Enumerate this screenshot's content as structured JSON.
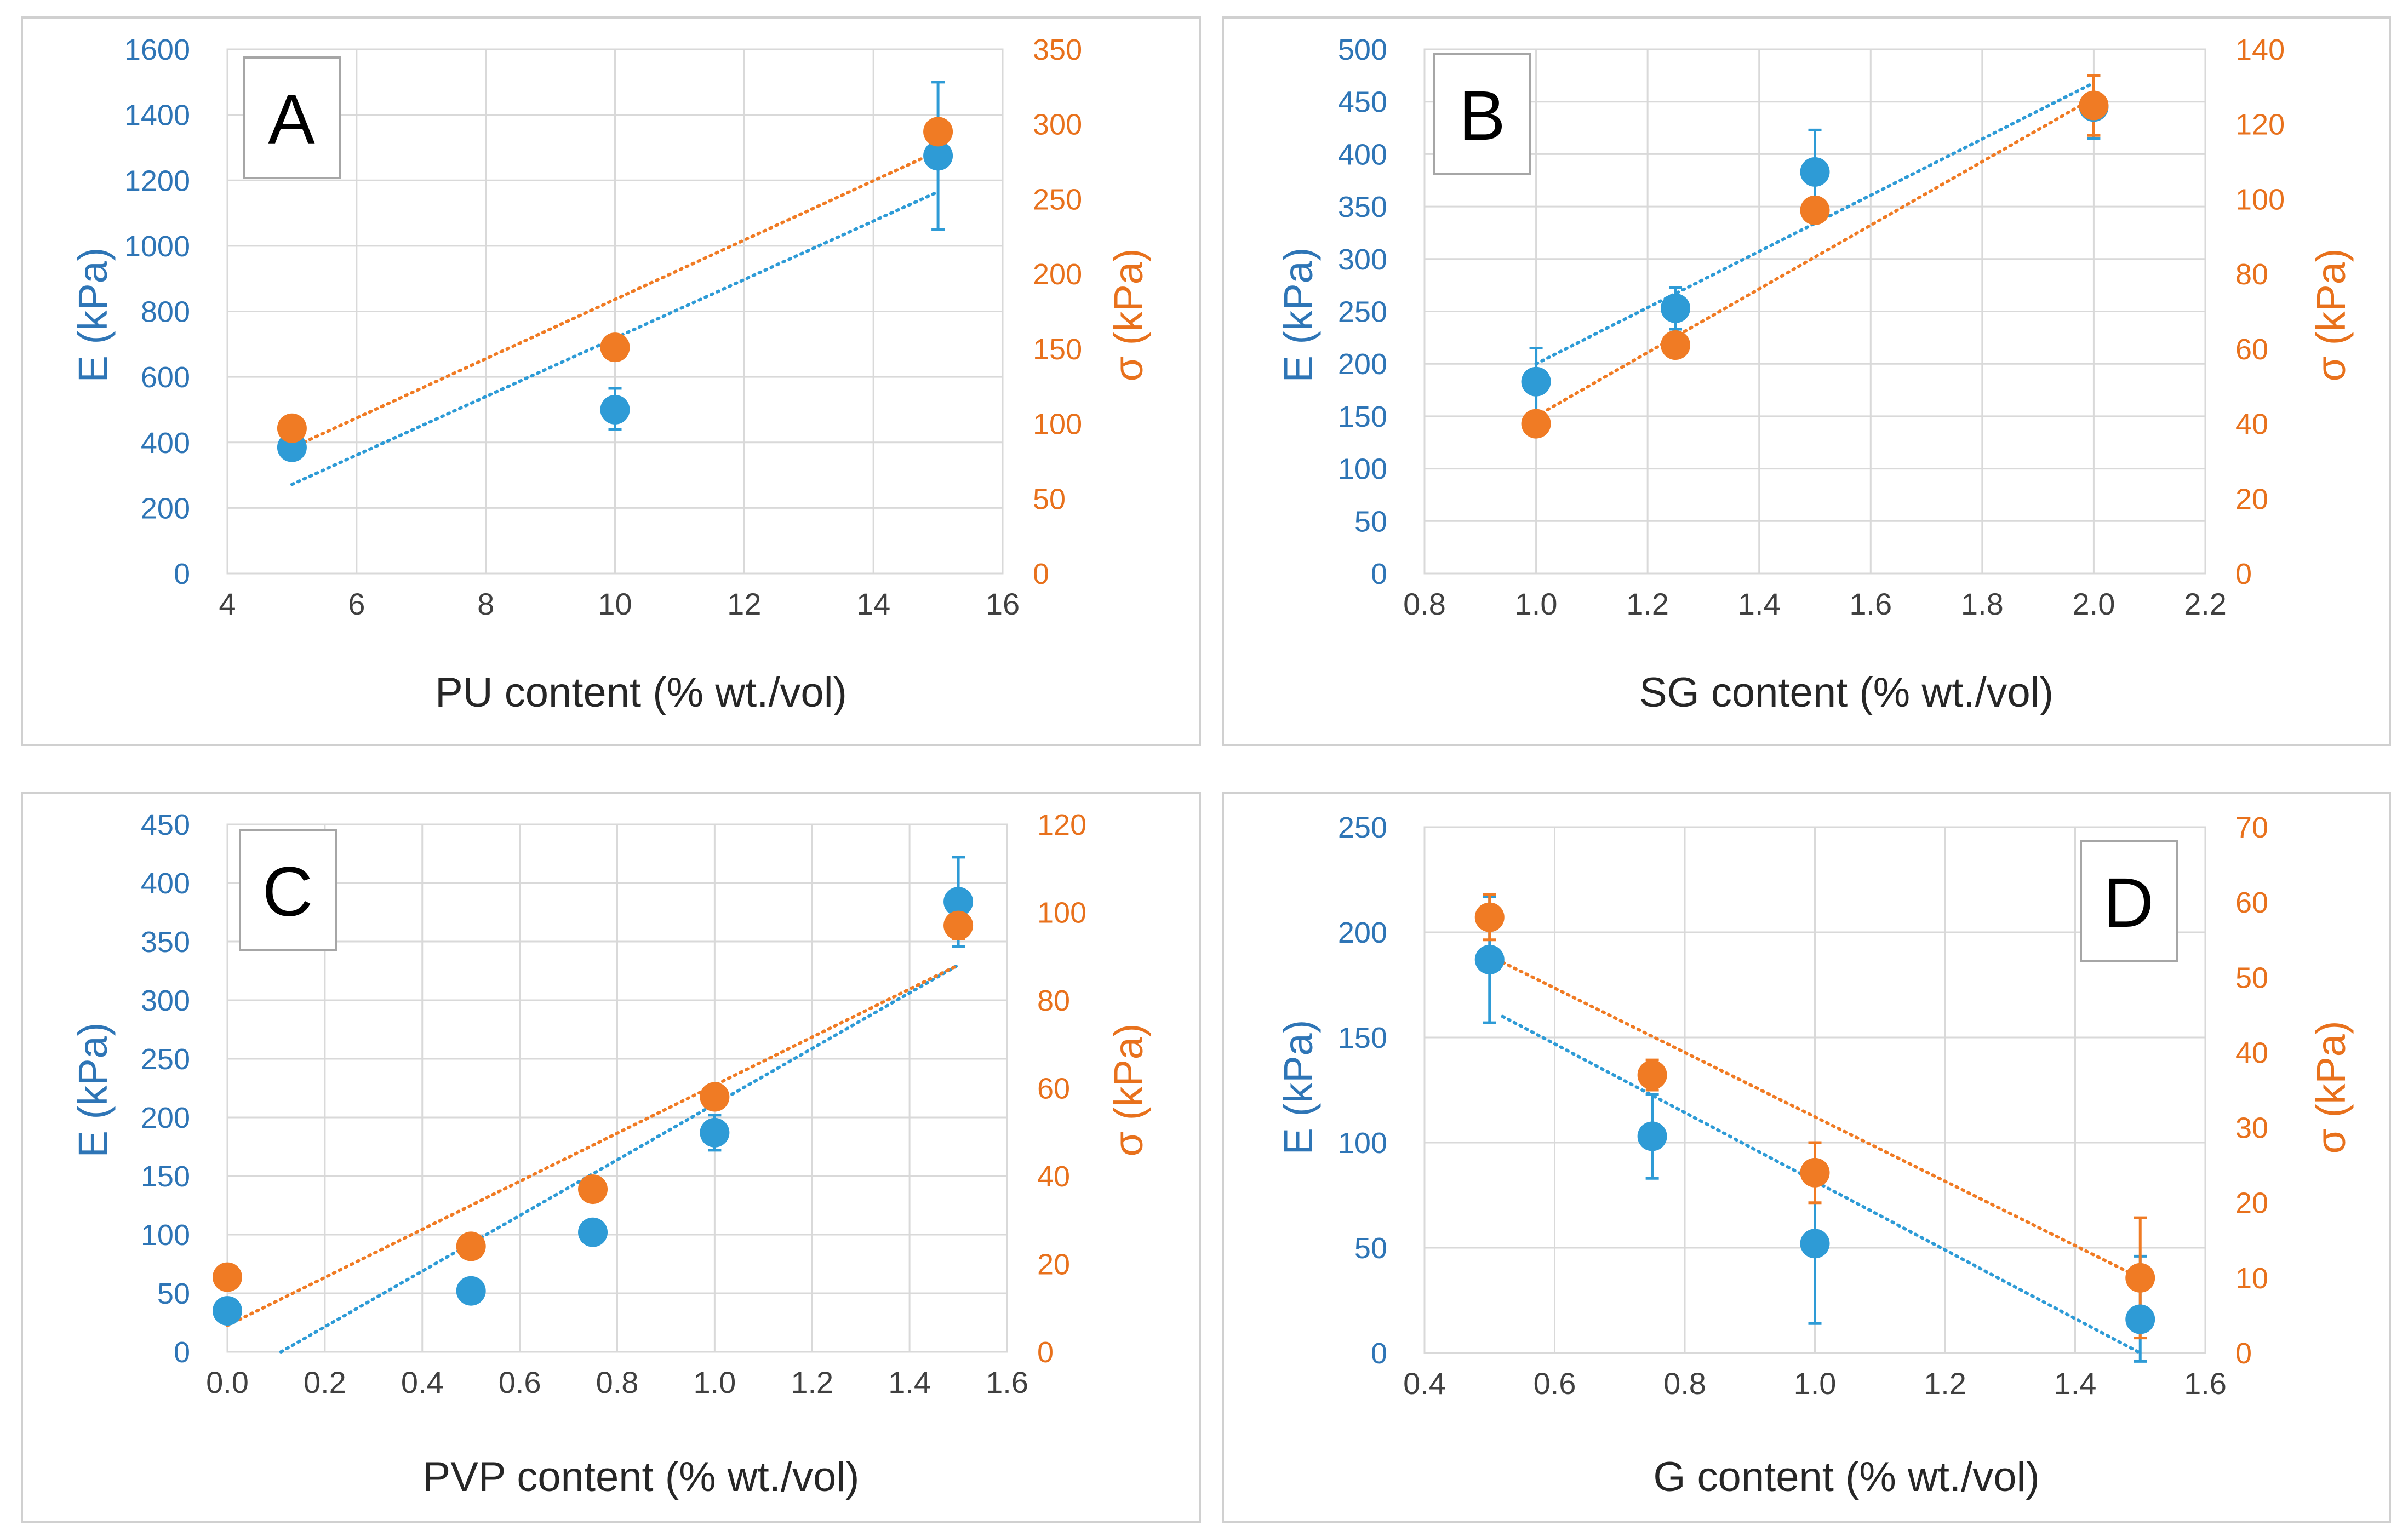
{
  "colors": {
    "E": "#2E9BD6",
    "sigma": "#F07B24",
    "E_text": "#2E75B6",
    "sigma_text": "#E8711C"
  },
  "chart_data": [
    {
      "type": "scatter",
      "panel": "A",
      "xlabel": "PU content (% wt./vol)",
      "ylabel_left": "E (kPa)",
      "ylabel_right": "σ (kPa)",
      "x_ticks": [
        "4",
        "6",
        "8",
        "10",
        "12",
        "14",
        "16"
      ],
      "y_left_ticks": [
        "0",
        "200",
        "400",
        "600",
        "800",
        "1000",
        "1200",
        "1400",
        "1600"
      ],
      "y_right_ticks": [
        "0",
        "50",
        "100",
        "150",
        "200",
        "250",
        "300",
        "350"
      ],
      "xlim": [
        4,
        16
      ],
      "ylim_left": [
        0,
        1600
      ],
      "ylim_right": [
        0,
        350
      ],
      "legend_position": "top-left",
      "series": [
        {
          "name": "E",
          "axis": "left",
          "x": [
            5,
            10,
            15
          ],
          "y": [
            385,
            500,
            1275
          ],
          "err_low": [
            0,
            60,
            225
          ],
          "err_high": [
            0,
            65,
            225
          ],
          "trend": {
            "x": [
              5,
              15
            ],
            "y": [
              272,
              1165
            ]
          }
        },
        {
          "name": "σ",
          "axis": "right",
          "x": [
            5,
            10,
            15
          ],
          "y": [
            97,
            151,
            295
          ],
          "err_low": [
            0,
            0,
            0
          ],
          "err_high": [
            0,
            0,
            0
          ],
          "trend": {
            "x": [
              5,
              15
            ],
            "y": [
              84,
              282
            ]
          }
        }
      ]
    },
    {
      "type": "scatter",
      "panel": "B",
      "xlabel": "SG content (% wt./vol)",
      "ylabel_left": "E (kPa)",
      "ylabel_right": "σ (kPa)",
      "x_ticks": [
        "0.8",
        "1.0",
        "1.2",
        "1.4",
        "1.6",
        "1.8",
        "2.0",
        "2.2"
      ],
      "y_left_ticks": [
        "0",
        "50",
        "100",
        "150",
        "200",
        "250",
        "300",
        "350",
        "400",
        "450",
        "500"
      ],
      "y_right_ticks": [
        "0",
        "20",
        "40",
        "60",
        "80",
        "100",
        "120",
        "140"
      ],
      "xlim": [
        0.8,
        2.2
      ],
      "ylim_left": [
        0,
        500
      ],
      "ylim_right": [
        0,
        140
      ],
      "legend_position": "top-left",
      "series": [
        {
          "name": "E",
          "axis": "left",
          "x": [
            1.0,
            1.25,
            1.5,
            2.0
          ],
          "y": [
            183,
            253,
            383,
            445
          ],
          "err_low": [
            32,
            20,
            40,
            30
          ],
          "err_high": [
            32,
            20,
            40,
            30
          ],
          "trend": {
            "x": [
              1.0,
              2.0
            ],
            "y": [
              200,
              468
            ]
          }
        },
        {
          "name": "σ",
          "axis": "right",
          "x": [
            1.0,
            1.25,
            1.5,
            2.0
          ],
          "y": [
            40,
            61,
            97,
            125
          ],
          "err_low": [
            0,
            0,
            3,
            8
          ],
          "err_high": [
            0,
            0,
            3,
            8
          ],
          "trend": {
            "x": [
              1.0,
              2.0
            ],
            "y": [
              42,
              127
            ]
          }
        }
      ]
    },
    {
      "type": "scatter",
      "panel": "C",
      "xlabel": "PVP content (% wt./vol)",
      "ylabel_left": "E (kPa)",
      "ylabel_right": "σ (kPa)",
      "x_ticks": [
        "0.0",
        "0.2",
        "0.4",
        "0.6",
        "0.8",
        "1.0",
        "1.2",
        "1.4",
        "1.6"
      ],
      "y_left_ticks": [
        "0",
        "50",
        "100",
        "150",
        "200",
        "250",
        "300",
        "350",
        "400",
        "450"
      ],
      "y_right_ticks": [
        "0",
        "20",
        "40",
        "60",
        "80",
        "100",
        "120"
      ],
      "xlim": [
        0,
        1.6
      ],
      "ylim_left": [
        0,
        450
      ],
      "ylim_right": [
        0,
        120
      ],
      "legend_position": "top-left",
      "series": [
        {
          "name": "E",
          "axis": "left",
          "x": [
            0.0,
            0.5,
            0.75,
            1.0,
            1.5
          ],
          "y": [
            35,
            52,
            102,
            187,
            384
          ],
          "err_low": [
            0,
            0,
            10,
            15,
            38
          ],
          "err_high": [
            0,
            0,
            10,
            15,
            38
          ],
          "trend": {
            "x": [
              0.11,
              1.5
            ],
            "y": [
              0,
              330
            ]
          }
        },
        {
          "name": "σ",
          "axis": "right",
          "x": [
            0.0,
            0.5,
            0.75,
            1.0,
            1.5
          ],
          "y": [
            17,
            24,
            37,
            58,
            97
          ],
          "err_low": [
            0,
            0,
            0,
            0,
            3
          ],
          "err_high": [
            0,
            0,
            0,
            0,
            3
          ],
          "trend": {
            "x": [
              0.0,
              1.5
            ],
            "y": [
              6,
              88
            ]
          }
        }
      ]
    },
    {
      "type": "scatter",
      "panel": "D",
      "xlabel": "G content (% wt./vol)",
      "ylabel_left": "E (kPa)",
      "ylabel_right": "σ (kPa)",
      "x_ticks": [
        "0.4",
        "0.6",
        "0.8",
        "1.0",
        "1.2",
        "1.4",
        "1.6"
      ],
      "y_left_ticks": [
        "0",
        "50",
        "100",
        "150",
        "200",
        "250"
      ],
      "y_right_ticks": [
        "0",
        "10",
        "20",
        "30",
        "40",
        "50",
        "60",
        "70"
      ],
      "xlim": [
        0.4,
        1.6
      ],
      "ylim_left": [
        0,
        250
      ],
      "ylim_right": [
        0,
        70
      ],
      "legend_position": "top-right",
      "series": [
        {
          "name": "E",
          "axis": "left",
          "x": [
            0.5,
            0.75,
            1.0,
            1.5
          ],
          "y": [
            187,
            103,
            52,
            16
          ],
          "err_low": [
            30,
            20,
            38,
            20
          ],
          "err_high": [
            30,
            20,
            38,
            30
          ],
          "trend": {
            "x": [
              0.52,
              1.5
            ],
            "y": [
              160,
              0
            ]
          }
        },
        {
          "name": "σ",
          "axis": "right",
          "x": [
            0.5,
            0.75,
            1.0,
            1.5
          ],
          "y": [
            58,
            37,
            24,
            10
          ],
          "err_low": [
            3,
            2,
            4,
            8
          ],
          "err_high": [
            3,
            2,
            4,
            8
          ],
          "trend": {
            "x": [
              0.52,
              1.5
            ],
            "y": [
              52,
              10
            ]
          }
        }
      ]
    }
  ]
}
